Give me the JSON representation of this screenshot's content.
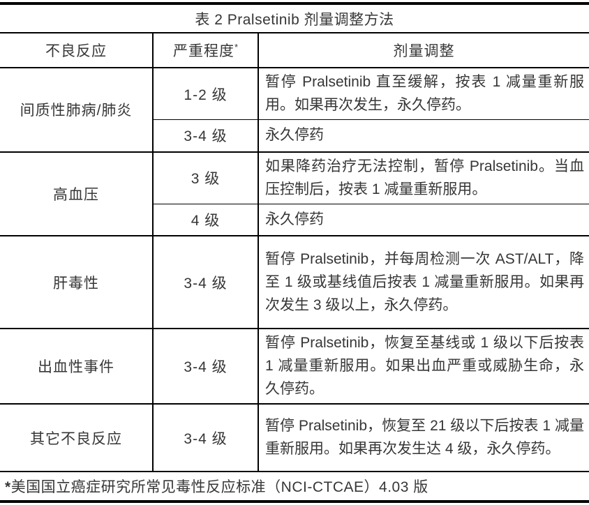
{
  "title": "表 2 Pralsetinib 剂量调整方法",
  "header": {
    "col1": "不良反应",
    "col2": "严重程度",
    "col2_sup": "*",
    "col3": "剂量调整"
  },
  "rows": [
    {
      "reaction": "间质性肺病/肺炎",
      "entries": [
        {
          "severity": "1-2 级",
          "adjustment": "暂停 Pralsetinib 直至缓解，按表 1 减量重新服用。如果再次发生，永久停药。"
        },
        {
          "severity": "3-4 级",
          "adjustment": "永久停药"
        }
      ]
    },
    {
      "reaction": "高血压",
      "entries": [
        {
          "severity": "3 级",
          "adjustment": "如果降药治疗无法控制，暂停 Pralsetinib。当血压控制后，按表 1 减量重新服用。"
        },
        {
          "severity": "4 级",
          "adjustment": "永久停药"
        }
      ]
    },
    {
      "reaction": "肝毒性",
      "entries": [
        {
          "severity": "3-4 级",
          "adjustment": "暂停 Pralsetinib，并每周检测一次 AST/ALT，降至 1 级或基线值后按表 1 减量重新服用。如果再次发生 3 级以上，永久停药。"
        }
      ]
    },
    {
      "reaction": "出血性事件",
      "entries": [
        {
          "severity": "3-4 级",
          "adjustment": "暂停 Pralsetinib，恢复至基线或 1 级以下后按表 1 减量重新服用。如果出血严重或威胁生命，永久停药。"
        }
      ]
    },
    {
      "reaction": "其它不良反应",
      "entries": [
        {
          "severity": "3-4 级",
          "adjustment": "暂停 Pralsetinib，恢复至 21 级以下后按表 1 减量重新服用。如果再次发生达 4 级，永久停药。"
        }
      ]
    }
  ],
  "footnote": {
    "star": "*",
    "text": "美国国立癌症研究所常见毒性反应标准（NCI-CTCAE）4.03 版"
  },
  "colors": {
    "text": "#363636",
    "border": "#000000",
    "bg": "#ffffff"
  }
}
